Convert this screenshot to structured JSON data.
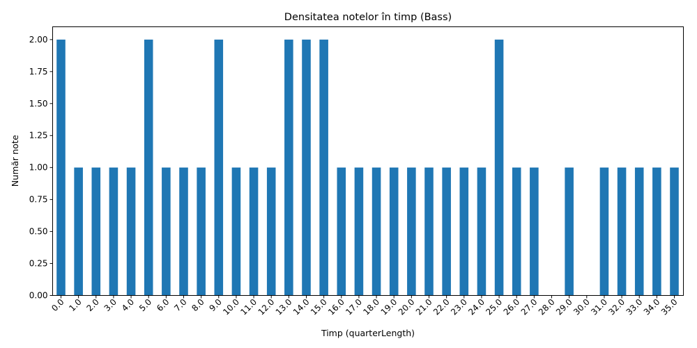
{
  "chart_data": {
    "type": "bar",
    "title": "Densitatea notelor în timp (Bass)",
    "xlabel": "Timp (quarterLength)",
    "ylabel": "Număr note",
    "categories": [
      "0.0",
      "1.0",
      "2.0",
      "3.0",
      "4.0",
      "5.0",
      "6.0",
      "7.0",
      "8.0",
      "9.0",
      "10.0",
      "11.0",
      "12.0",
      "13.0",
      "14.0",
      "15.0",
      "16.0",
      "17.0",
      "18.0",
      "19.0",
      "20.0",
      "21.0",
      "22.0",
      "23.0",
      "24.0",
      "25.0",
      "26.0",
      "27.0",
      "28.0",
      "29.0",
      "30.0",
      "31.0",
      "32.0",
      "33.0",
      "34.0",
      "35.0"
    ],
    "values": [
      2,
      1,
      1,
      1,
      1,
      2,
      1,
      1,
      1,
      2,
      1,
      1,
      1,
      2,
      2,
      2,
      1,
      1,
      1,
      1,
      1,
      1,
      1,
      1,
      1,
      2,
      1,
      1,
      0,
      1,
      0,
      1,
      1,
      1,
      1,
      1
    ],
    "ylim": [
      0,
      2.1
    ],
    "yticks": [
      "0.00",
      "0.25",
      "0.50",
      "0.75",
      "1.00",
      "1.25",
      "1.50",
      "1.75",
      "2.00"
    ],
    "grid": false,
    "color": "#1f77b4"
  }
}
